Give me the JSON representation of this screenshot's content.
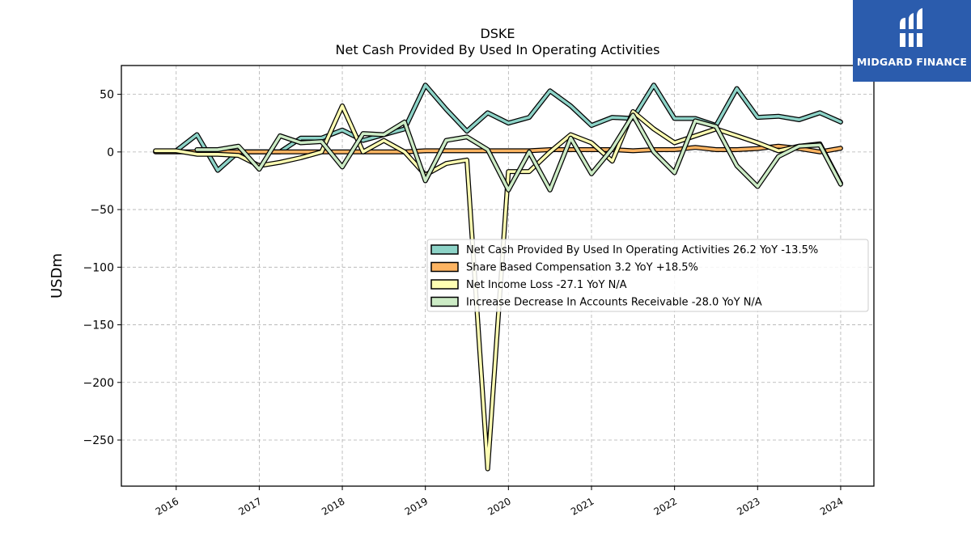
{
  "chart_data": {
    "type": "line",
    "title": "DSKE",
    "subtitle": "Net Cash Provided By Used In Operating Activities",
    "ylabel": "USDm",
    "xlabel": "",
    "xlim": [
      2015.34,
      2024.4
    ],
    "ylim": [
      -290,
      75
    ],
    "yticks": [
      50,
      0,
      -50,
      -100,
      -150,
      -200,
      -250
    ],
    "yticklabels": [
      "50",
      "0",
      "−50",
      "−100",
      "−150",
      "−200",
      "−250"
    ],
    "xticks": [
      2016,
      2017,
      2018,
      2019,
      2020,
      2021,
      2022,
      2023,
      2024
    ],
    "xticklabels": [
      "2016",
      "2017",
      "2018",
      "2019",
      "2020",
      "2021",
      "2022",
      "2023",
      "2024"
    ],
    "grid": true,
    "legend_position": "center-right",
    "series": [
      {
        "name": "Net Cash Provided By Used In Operating Activities",
        "legend_label": "Net Cash Provided By Used In Operating Activities  26.2 YoY -13.5%",
        "color": "#8dd3c7",
        "points": [
          [
            2016.0,
            1
          ],
          [
            2016.25,
            15
          ],
          [
            2016.5,
            -16
          ],
          [
            2016.75,
            0
          ],
          [
            2017.0,
            0
          ],
          [
            2017.25,
            0
          ],
          [
            2017.5,
            12
          ],
          [
            2017.75,
            12
          ],
          [
            2018.0,
            19
          ],
          [
            2018.25,
            10
          ],
          [
            2018.5,
            15
          ],
          [
            2018.75,
            20
          ],
          [
            2019.0,
            58
          ],
          [
            2019.25,
            37
          ],
          [
            2019.5,
            18
          ],
          [
            2019.75,
            34
          ],
          [
            2020.0,
            25
          ],
          [
            2020.25,
            30
          ],
          [
            2020.5,
            53
          ],
          [
            2020.75,
            40
          ],
          [
            2021.0,
            23
          ],
          [
            2021.25,
            30
          ],
          [
            2021.5,
            29
          ],
          [
            2021.75,
            58
          ],
          [
            2022.0,
            29
          ],
          [
            2022.25,
            29
          ],
          [
            2022.5,
            23
          ],
          [
            2022.75,
            55
          ],
          [
            2023.0,
            30
          ],
          [
            2023.25,
            31
          ],
          [
            2023.5,
            28
          ],
          [
            2023.75,
            34
          ],
          [
            2024.0,
            26
          ]
        ]
      },
      {
        "name": "Share Based Compensation",
        "legend_label": "Share Based Compensation  3.2 YoY +18.5%",
        "color": "#fdb462",
        "points": [
          [
            2015.75,
            0
          ],
          [
            2016.0,
            0
          ],
          [
            2016.25,
            0
          ],
          [
            2016.5,
            0
          ],
          [
            2016.75,
            0
          ],
          [
            2017.0,
            0
          ],
          [
            2017.25,
            0
          ],
          [
            2017.5,
            0
          ],
          [
            2017.75,
            0
          ],
          [
            2018.0,
            0
          ],
          [
            2018.25,
            0
          ],
          [
            2018.5,
            0
          ],
          [
            2018.75,
            0
          ],
          [
            2019.0,
            1
          ],
          [
            2019.25,
            1
          ],
          [
            2019.5,
            1
          ],
          [
            2019.75,
            1
          ],
          [
            2020.0,
            1
          ],
          [
            2020.25,
            1
          ],
          [
            2020.5,
            2
          ],
          [
            2020.75,
            2
          ],
          [
            2021.0,
            2
          ],
          [
            2021.25,
            2
          ],
          [
            2021.5,
            1
          ],
          [
            2021.75,
            2
          ],
          [
            2022.0,
            2
          ],
          [
            2022.25,
            4
          ],
          [
            2022.5,
            2
          ],
          [
            2022.75,
            2
          ],
          [
            2023.0,
            3
          ],
          [
            2023.25,
            5
          ],
          [
            2023.5,
            3
          ],
          [
            2023.75,
            0
          ],
          [
            2024.0,
            3.2
          ]
        ]
      },
      {
        "name": "Net Income Loss",
        "legend_label": "Net Income Loss  -27.1 YoY N/A",
        "color": "#ffffb3",
        "points": [
          [
            2015.75,
            1
          ],
          [
            2016.0,
            1
          ],
          [
            2016.25,
            -2
          ],
          [
            2016.5,
            -2
          ],
          [
            2016.75,
            -3
          ],
          [
            2017.0,
            -12
          ],
          [
            2017.25,
            -9
          ],
          [
            2017.5,
            -5
          ],
          [
            2017.75,
            0
          ],
          [
            2018.0,
            40
          ],
          [
            2018.25,
            0
          ],
          [
            2018.5,
            10
          ],
          [
            2018.75,
            0
          ],
          [
            2019.0,
            -20
          ],
          [
            2019.25,
            -10
          ],
          [
            2019.5,
            -7
          ],
          [
            2019.75,
            -275
          ],
          [
            2020.0,
            -17
          ],
          [
            2020.25,
            -17
          ],
          [
            2020.5,
            0
          ],
          [
            2020.75,
            15
          ],
          [
            2021.0,
            8
          ],
          [
            2021.25,
            -8
          ],
          [
            2021.5,
            35
          ],
          [
            2021.75,
            20
          ],
          [
            2022.0,
            8
          ],
          [
            2022.25,
            14
          ],
          [
            2022.5,
            20
          ],
          [
            2022.75,
            14
          ],
          [
            2023.0,
            8
          ],
          [
            2023.25,
            1
          ],
          [
            2023.5,
            5
          ],
          [
            2023.75,
            7
          ],
          [
            2024.0,
            -27.1
          ]
        ]
      },
      {
        "name": "Increase Decrease In Accounts Receivable",
        "legend_label": "Increase Decrease In Accounts Receivable  -28.0 YoY N/A",
        "color": "#ccebc5",
        "points": [
          [
            2016.25,
            2
          ],
          [
            2016.5,
            2
          ],
          [
            2016.75,
            5
          ],
          [
            2017.0,
            -15
          ],
          [
            2017.25,
            14
          ],
          [
            2017.5,
            8
          ],
          [
            2017.75,
            9
          ],
          [
            2018.0,
            -13
          ],
          [
            2018.25,
            16
          ],
          [
            2018.5,
            15
          ],
          [
            2018.75,
            26
          ],
          [
            2019.0,
            -25
          ],
          [
            2019.25,
            10
          ],
          [
            2019.5,
            13
          ],
          [
            2019.75,
            2
          ],
          [
            2020.0,
            -33
          ],
          [
            2020.25,
            0
          ],
          [
            2020.5,
            -33
          ],
          [
            2020.75,
            12
          ],
          [
            2021.0,
            -19
          ],
          [
            2021.25,
            3
          ],
          [
            2021.5,
            32
          ],
          [
            2021.75,
            0
          ],
          [
            2022.0,
            -18
          ],
          [
            2022.25,
            27
          ],
          [
            2022.5,
            22
          ],
          [
            2022.75,
            -12
          ],
          [
            2023.0,
            -30
          ],
          [
            2023.25,
            -4
          ],
          [
            2023.5,
            5
          ],
          [
            2023.75,
            6
          ],
          [
            2024.0,
            -28
          ]
        ]
      }
    ]
  },
  "logo": {
    "text": "MIDGARD FINANCE",
    "color": "#2b5cad"
  }
}
